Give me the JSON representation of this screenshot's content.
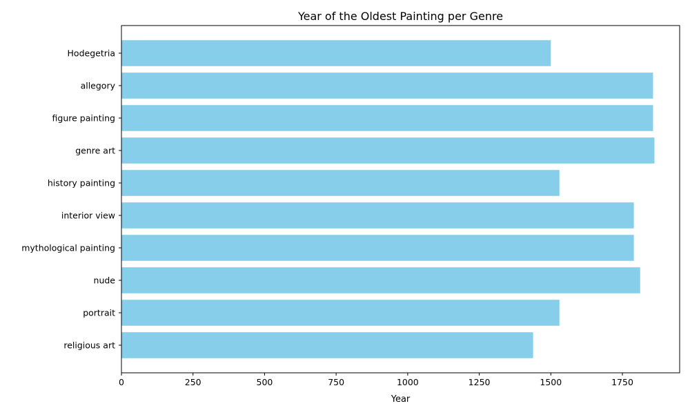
{
  "chart_data": {
    "type": "bar",
    "orientation": "horizontal",
    "title": "Year of the Oldest Painting per Genre",
    "xlabel": "Year",
    "ylabel": "",
    "categories": [
      "Hodegetria",
      "allegory",
      "figure painting",
      "genre art",
      "history painting",
      "interior view",
      "mythological painting",
      "nude",
      "portrait",
      "religious art"
    ],
    "values": [
      1500,
      1857,
      1857,
      1862,
      1530,
      1790,
      1790,
      1812,
      1530,
      1438
    ],
    "xlim": [
      0,
      1950
    ],
    "xticks": [
      0,
      250,
      500,
      750,
      1000,
      1250,
      1500,
      1750
    ],
    "xtick_labels": [
      "0",
      "250",
      "500",
      "750",
      "1000",
      "1250",
      "1500",
      "1750"
    ],
    "grid": false,
    "legend": "none",
    "bar_color": "#87ceeb"
  }
}
